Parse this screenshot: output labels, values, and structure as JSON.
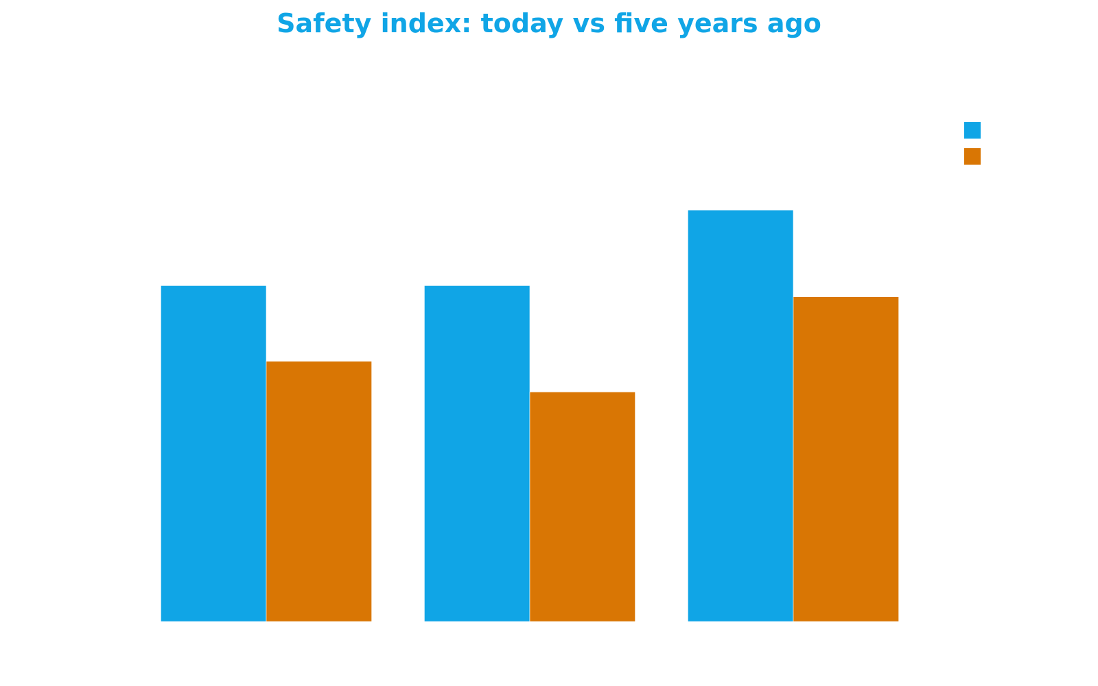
{
  "chart_data": {
    "type": "bar",
    "title": "Safety index: today vs five years ago",
    "categories": [
      "",
      "",
      ""
    ],
    "series": [
      {
        "values": [
          60,
          60,
          73.5
        ],
        "color": "#10a5e6"
      },
      {
        "values": [
          46.5,
          41,
          58
        ],
        "color": "#d97604"
      }
    ],
    "ylim": [
      0,
      100
    ],
    "grid": false,
    "legend": "top-right",
    "xlabel": "",
    "ylabel": ""
  },
  "colors": {
    "title": "#10a5e6",
    "background": "#ffffff"
  }
}
